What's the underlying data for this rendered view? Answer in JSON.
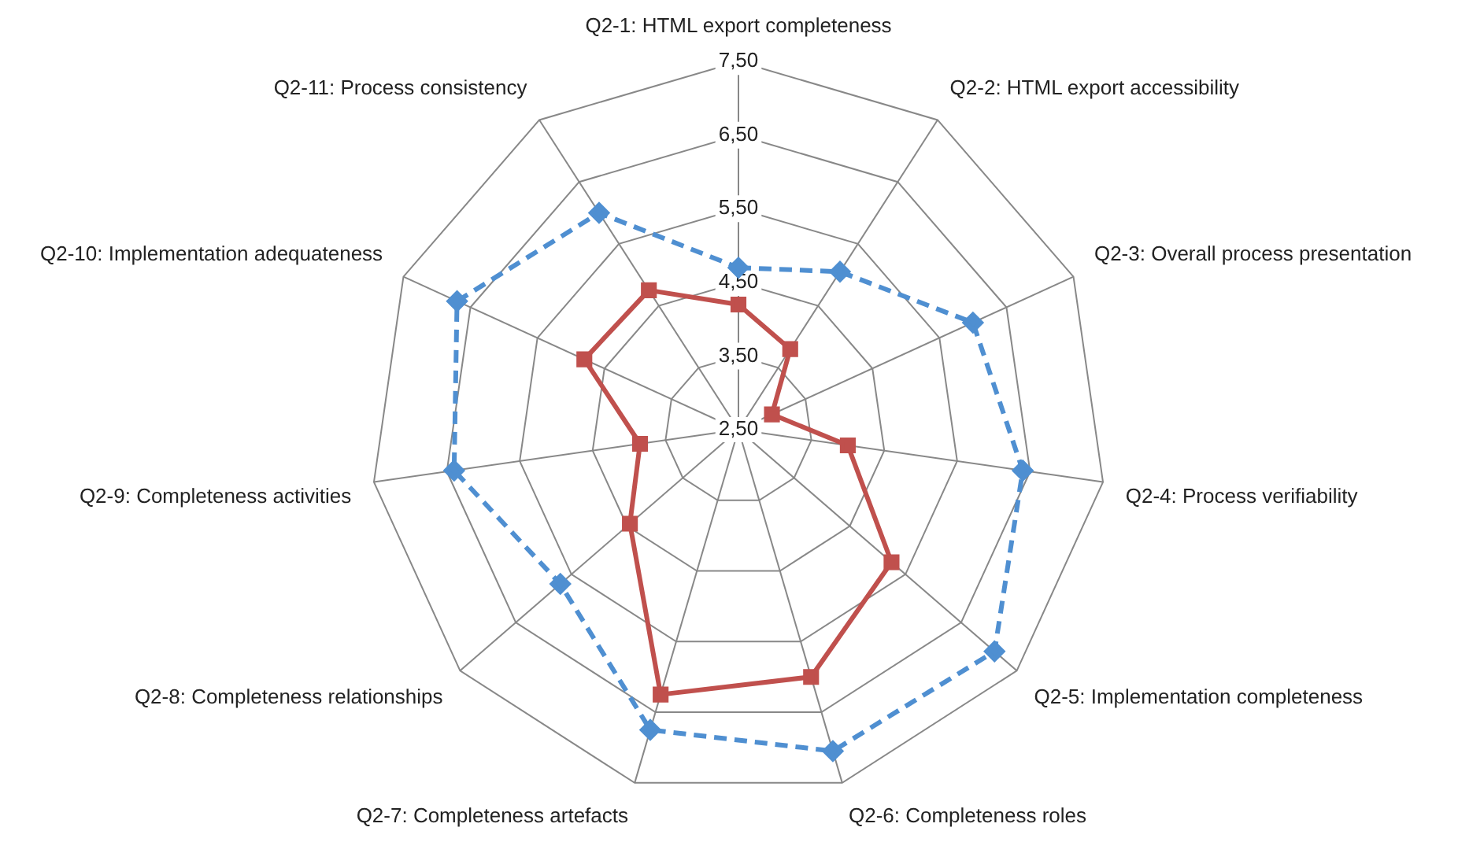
{
  "chart_data": {
    "type": "radar",
    "categories": [
      "Q2-1: HTML export completeness",
      "Q2-2: HTML export accessibility",
      "Q2-3: Overall process presentation",
      "Q2-4: Process verifiability",
      "Q2-5: Implementation completeness",
      "Q2-6: Completeness roles",
      "Q2-7: Completeness artefacts",
      "Q2-8: Completeness relationships",
      "Q2-9: Completeness activities",
      "Q2-10: Implementation adequateness",
      "Q2-11: Process consistency"
    ],
    "series": [
      {
        "color": "#4f8fd1",
        "marker": "diamond",
        "line_style": "dashed",
        "values": [
          4.7,
          5.05,
          6.0,
          6.4,
          7.1,
          7.05,
          6.75,
          5.7,
          6.4,
          6.7,
          6.0
        ]
      },
      {
        "color": "#c0504d",
        "marker": "square",
        "line_style": "solid",
        "values": [
          4.2,
          3.8,
          3.0,
          4.0,
          5.25,
          6.0,
          6.25,
          4.45,
          3.85,
          4.8,
          4.75
        ]
      }
    ],
    "ylim": [
      2.5,
      7.5
    ],
    "yticks": [
      {
        "value": 2.5,
        "label": "2,50"
      },
      {
        "value": 3.5,
        "label": "3,50"
      },
      {
        "value": 4.5,
        "label": "4,50"
      },
      {
        "value": 5.5,
        "label": "5,50"
      },
      {
        "value": 6.5,
        "label": "6,50"
      },
      {
        "value": 7.5,
        "label": "7,50"
      }
    ],
    "grid": true,
    "legend": false
  }
}
